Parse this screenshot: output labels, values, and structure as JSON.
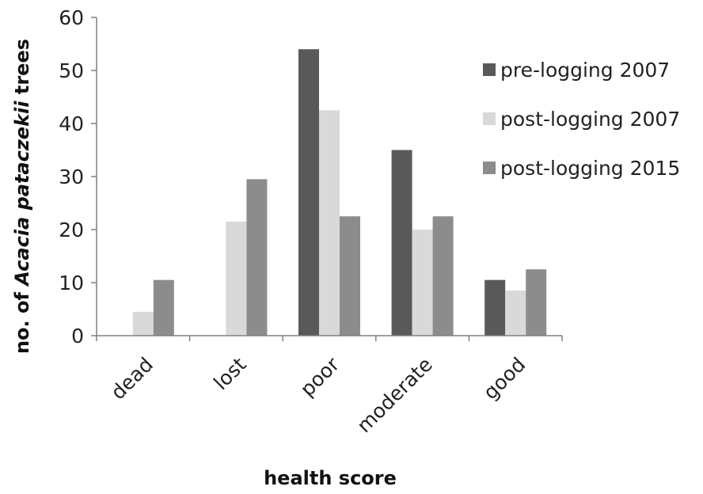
{
  "chart_data": {
    "type": "bar",
    "categories": [
      "dead",
      "lost",
      "poor",
      "moderate",
      "good"
    ],
    "series": [
      {
        "name": "pre-logging 2007",
        "color": "#595959",
        "values": [
          0,
          0,
          54,
          35,
          10.5
        ]
      },
      {
        "name": "post-logging 2007",
        "color": "#d9d9d9",
        "values": [
          4.5,
          21.5,
          42.5,
          20,
          8.5
        ]
      },
      {
        "name": "post-logging 2015",
        "color": "#8c8c8c",
        "values": [
          10.5,
          29.5,
          22.5,
          22.5,
          12.5
        ]
      }
    ],
    "xlabel": "health score",
    "ylabel": {
      "prefix": "no. of ",
      "italic": "Acacia pataczekii",
      "suffix": " trees"
    },
    "ylim": [
      0,
      60
    ],
    "yticks": [
      "0",
      "10",
      "20",
      "30",
      "40",
      "50",
      "60"
    ],
    "grid": false,
    "legend_position": "right"
  }
}
